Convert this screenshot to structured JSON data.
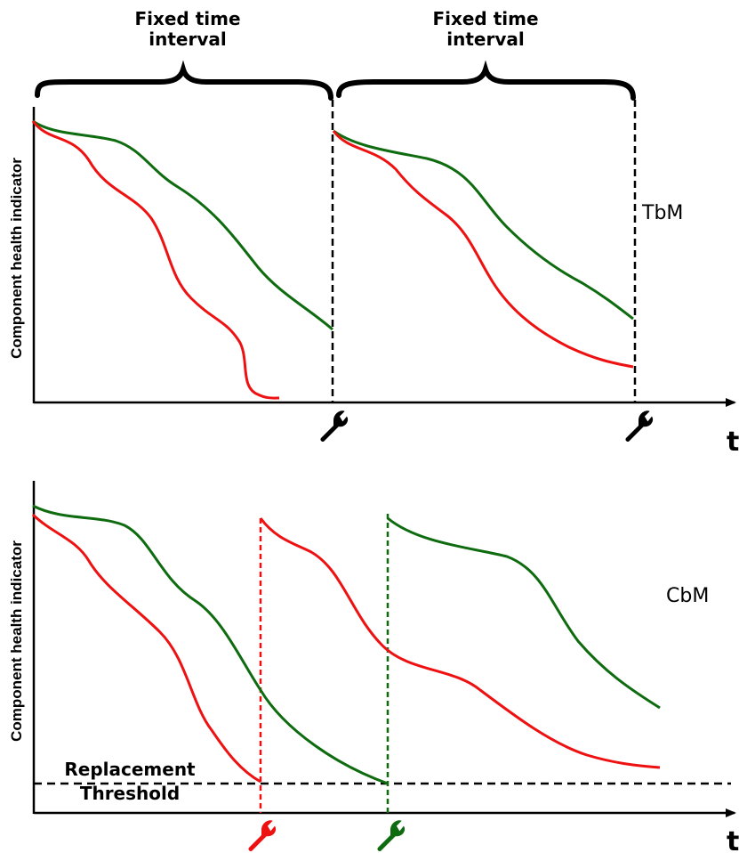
{
  "top_panel": {
    "interval_1_line1": "Fixed time",
    "interval_1_line2": "interval",
    "interval_2_line1": "Fixed time",
    "interval_2_line2": "interval",
    "y_axis_label": "Component health indicator",
    "x_axis_label": "t",
    "strategy_label": "TbM"
  },
  "bottom_panel": {
    "y_axis_label": "Component health indicator",
    "x_axis_label": "t",
    "strategy_label": "CbM",
    "threshold_line1": "Replacement",
    "threshold_line2": "Threshold"
  },
  "colors": {
    "red": "#ee1111",
    "green": "#0f6b0f",
    "black": "#000000"
  }
}
